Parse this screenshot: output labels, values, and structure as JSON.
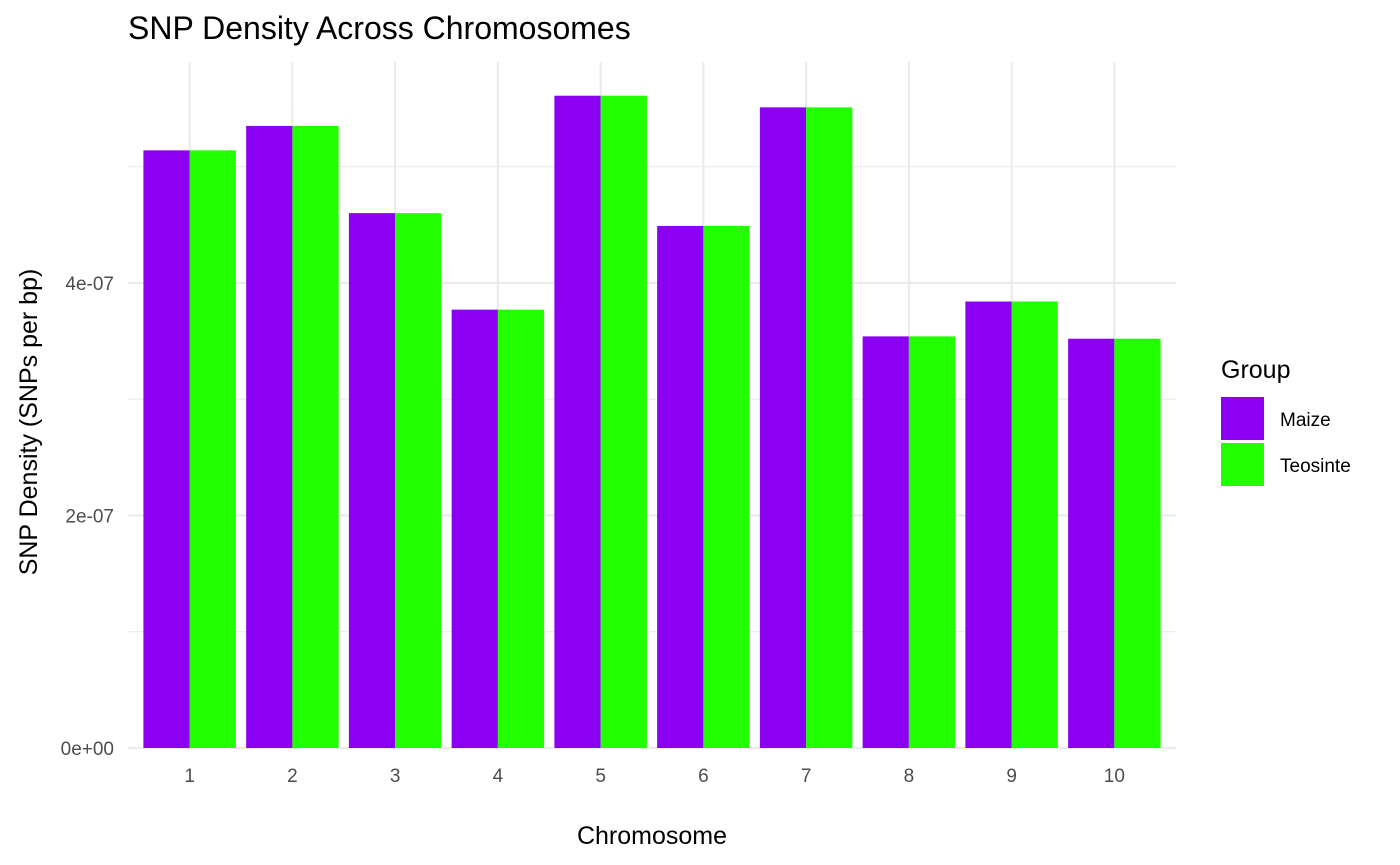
{
  "chart_data": {
    "type": "bar",
    "title": "SNP Density Across Chromosomes",
    "xlabel": "Chromosome",
    "ylabel": "SNP Density (SNPs per bp)",
    "categories": [
      "1",
      "2",
      "3",
      "4",
      "5",
      "6",
      "7",
      "8",
      "9",
      "10"
    ],
    "series": [
      {
        "name": "Maize",
        "color": "#8B00F0",
        "values": [
          5.14e-07,
          5.35e-07,
          4.6e-07,
          3.77e-07,
          5.61e-07,
          4.49e-07,
          5.51e-07,
          3.54e-07,
          3.84e-07,
          3.52e-07
        ]
      },
      {
        "name": "Teosinte",
        "color": "#22FF00",
        "values": [
          5.14e-07,
          5.35e-07,
          4.6e-07,
          3.77e-07,
          5.61e-07,
          4.49e-07,
          5.51e-07,
          3.54e-07,
          3.84e-07,
          3.52e-07
        ]
      }
    ],
    "ylim": [
      0,
      5.9e-07
    ],
    "y_ticks": [
      0,
      2e-07,
      4e-07
    ],
    "y_tick_labels": [
      "0e+00",
      "2e-07",
      "4e-07"
    ],
    "y_minor_ticks": [
      1e-07,
      3e-07,
      5e-07
    ],
    "legend": {
      "title": "Group",
      "position": "right"
    },
    "grid": true
  }
}
